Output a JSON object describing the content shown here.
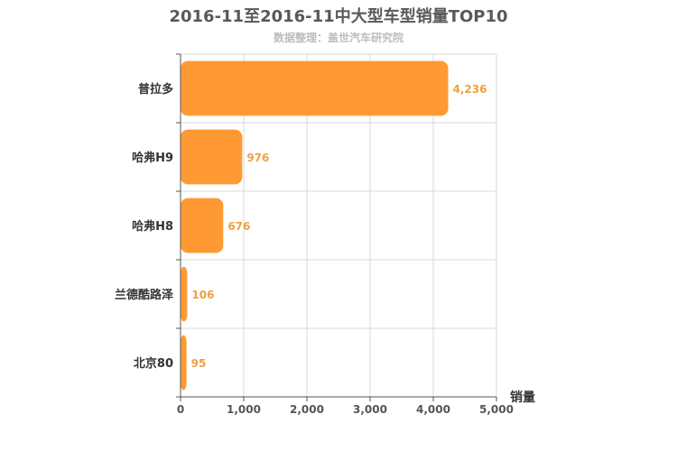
{
  "title": "2016-11至2016-11中大型车型销量TOP10",
  "subtitle": "数据整理：盖世汽车研究院",
  "chart_data": {
    "type": "bar",
    "orientation": "horizontal",
    "categories": [
      "普拉多",
      "哈弗H9",
      "哈弗H8",
      "兰德酷路泽",
      "北京80"
    ],
    "values": [
      4236,
      976,
      676,
      106,
      95
    ],
    "value_labels": [
      "4,236",
      "976",
      "676",
      "106",
      "95"
    ],
    "xlabel": "销量",
    "xlim": [
      0,
      5000
    ],
    "xticks": [
      0,
      1000,
      2000,
      3000,
      4000,
      5000
    ],
    "xtick_labels": [
      "0",
      "1,000",
      "2,000",
      "3,000",
      "4,000",
      "5,000"
    ],
    "grid": true,
    "bar_color": "#ff9933",
    "label_color": "#f0a040"
  }
}
